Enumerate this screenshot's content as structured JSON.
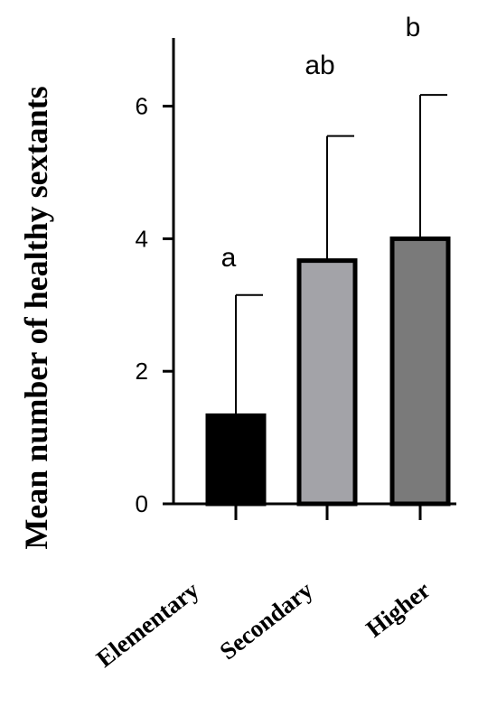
{
  "chart_data": {
    "type": "bar",
    "title": "",
    "xlabel": "",
    "ylabel": "Mean number of healthy sextants",
    "ylim": [
      0,
      7
    ],
    "yticks": [
      0,
      2,
      4,
      6
    ],
    "yticklabels": [
      "0",
      "2",
      "4",
      "6"
    ],
    "categories": [
      "Elementary",
      "Secondary",
      "Higher"
    ],
    "values": [
      1.33,
      3.67,
      4.0
    ],
    "error_upper": [
      3.15,
      5.55,
      6.17
    ],
    "significance_letters": [
      "a",
      "ab",
      "b"
    ],
    "bar_colors": [
      "#000000",
      "#a3a3a8",
      "#7a7a7a"
    ],
    "bar_edge_color": "#000000",
    "grid": false,
    "legend": "none"
  }
}
